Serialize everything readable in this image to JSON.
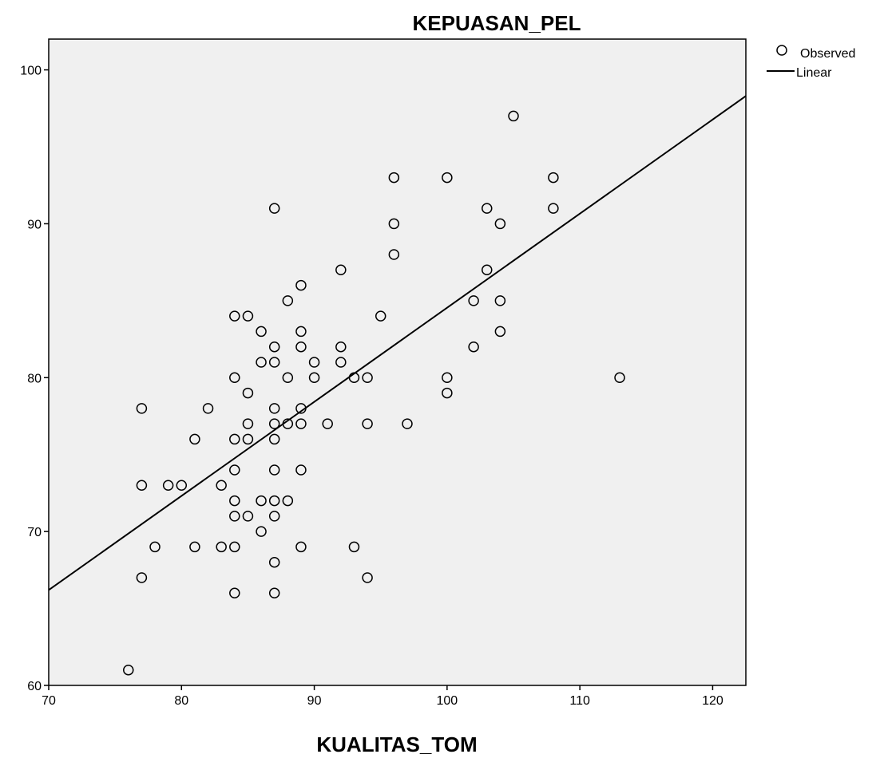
{
  "chart_data": {
    "type": "scatter",
    "title": "KEPUASAN_PEL",
    "xlabel": "KUALITAS_TOM",
    "ylabel": "",
    "xlim": [
      70,
      122.5
    ],
    "ylim": [
      60,
      102
    ],
    "xticks": [
      70,
      80,
      90,
      100,
      110,
      120
    ],
    "yticks": [
      60,
      70,
      80,
      90,
      100
    ],
    "grid": false,
    "legend_placement": "outside-top-right",
    "colors": {
      "plot_background": "#f0f0f0",
      "marker": "#000000",
      "line": "#000000"
    },
    "series": [
      {
        "name": "Observed",
        "kind": "scatter",
        "marker": "hollow-circle",
        "points": [
          [
            76,
            61
          ],
          [
            77,
            67
          ],
          [
            77,
            73
          ],
          [
            77,
            78
          ],
          [
            78,
            69
          ],
          [
            79,
            73
          ],
          [
            80,
            73
          ],
          [
            81,
            69
          ],
          [
            81,
            76
          ],
          [
            82,
            78
          ],
          [
            83,
            69
          ],
          [
            83,
            73
          ],
          [
            84,
            66
          ],
          [
            84,
            69
          ],
          [
            84,
            71
          ],
          [
            84,
            72
          ],
          [
            84,
            74
          ],
          [
            84,
            76
          ],
          [
            84,
            80
          ],
          [
            84,
            84
          ],
          [
            85,
            71
          ],
          [
            85,
            76
          ],
          [
            85,
            77
          ],
          [
            85,
            79
          ],
          [
            85,
            84
          ],
          [
            86,
            70
          ],
          [
            86,
            72
          ],
          [
            86,
            81
          ],
          [
            86,
            83
          ],
          [
            87,
            66
          ],
          [
            87,
            68
          ],
          [
            87,
            71
          ],
          [
            87,
            72
          ],
          [
            87,
            74
          ],
          [
            87,
            76
          ],
          [
            87,
            77
          ],
          [
            87,
            78
          ],
          [
            87,
            81
          ],
          [
            87,
            82
          ],
          [
            87,
            91
          ],
          [
            88,
            72
          ],
          [
            88,
            77
          ],
          [
            88,
            80
          ],
          [
            88,
            85
          ],
          [
            89,
            69
          ],
          [
            89,
            74
          ],
          [
            89,
            77
          ],
          [
            89,
            78
          ],
          [
            89,
            82
          ],
          [
            89,
            83
          ],
          [
            89,
            86
          ],
          [
            90,
            80
          ],
          [
            90,
            81
          ],
          [
            91,
            77
          ],
          [
            92,
            81
          ],
          [
            92,
            82
          ],
          [
            92,
            87
          ],
          [
            93,
            69
          ],
          [
            93,
            80
          ],
          [
            94,
            67
          ],
          [
            94,
            77
          ],
          [
            94,
            80
          ],
          [
            95,
            84
          ],
          [
            96,
            88
          ],
          [
            96,
            90
          ],
          [
            96,
            93
          ],
          [
            97,
            77
          ],
          [
            100,
            79
          ],
          [
            100,
            80
          ],
          [
            100,
            93
          ],
          [
            102,
            82
          ],
          [
            102,
            85
          ],
          [
            103,
            87
          ],
          [
            103,
            91
          ],
          [
            104,
            83
          ],
          [
            104,
            85
          ],
          [
            104,
            90
          ],
          [
            105,
            97
          ],
          [
            108,
            91
          ],
          [
            108,
            93
          ],
          [
            113,
            80
          ]
        ]
      },
      {
        "name": "Linear",
        "kind": "line",
        "points": [
          [
            70,
            66.2
          ],
          [
            122.5,
            98.3
          ]
        ]
      }
    ]
  }
}
